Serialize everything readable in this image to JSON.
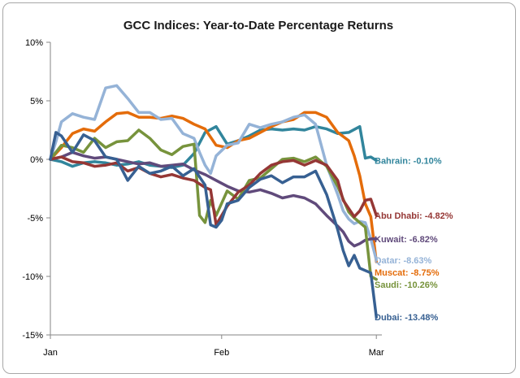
{
  "chart_data": {
    "type": "line",
    "title": "GCC Indices: Year-to-Date Percentage Returns",
    "xlabel": "",
    "ylabel": "",
    "ylim": [
      -15,
      10
    ],
    "yticks": [
      10,
      5,
      0,
      -5,
      -10,
      -15
    ],
    "ytick_labels": [
      "10%",
      "5%",
      "0%",
      "-5%",
      "-10%",
      "-15%"
    ],
    "xlim": [
      0,
      60
    ],
    "xticks": [
      0,
      31,
      59
    ],
    "xtick_labels": [
      "Jan",
      "Feb",
      "Mar"
    ],
    "grid": false,
    "legend": "none",
    "series": [
      {
        "name": "Bahrain",
        "end_label": "Bahrain: -0.10%",
        "color": "#31859c",
        "x": [
          0,
          2,
          4,
          6,
          8,
          10,
          12,
          14,
          16,
          18,
          20,
          22,
          24,
          26,
          28,
          30,
          32,
          34,
          36,
          38,
          40,
          42,
          44,
          46,
          48,
          50,
          52,
          54,
          56,
          57,
          58,
          59
        ],
        "values": [
          0,
          -0.2,
          -0.6,
          -0.3,
          -0.2,
          -0.3,
          -0.5,
          -0.4,
          -0.2,
          -0.5,
          -0.6,
          -0.7,
          -0.5,
          0.5,
          2.3,
          2.8,
          1.3,
          1.6,
          2.0,
          2.5,
          2.6,
          2.5,
          2.6,
          2.5,
          2.8,
          2.6,
          2.2,
          2.3,
          2.8,
          0.1,
          0.2,
          -0.1
        ]
      },
      {
        "name": "Abu Dhabi",
        "end_label": "Abu Dhabi: -4.82%",
        "color": "#953735",
        "x": [
          0,
          2,
          4,
          6,
          8,
          10,
          12,
          14,
          16,
          18,
          20,
          22,
          24,
          26,
          28,
          29,
          30,
          32,
          34,
          36,
          38,
          40,
          42,
          44,
          46,
          48,
          50,
          52,
          53,
          54,
          55,
          56,
          57,
          58,
          59
        ],
        "values": [
          0,
          0.2,
          -0.2,
          -0.3,
          -0.6,
          -0.5,
          -0.3,
          -1.0,
          -0.7,
          -1.2,
          -1.5,
          -1.3,
          -1.6,
          -1.8,
          -2.4,
          -2.6,
          -5.6,
          -4.0,
          -2.8,
          -2.2,
          -1.2,
          -0.5,
          -0.2,
          -0.1,
          -0.5,
          -0.1,
          -0.5,
          -1.8,
          -3.5,
          -4.2,
          -4.9,
          -4.4,
          -3.5,
          -3.4,
          -4.8
        ]
      },
      {
        "name": "Kuwait",
        "end_label": "Kuwait: -6.82%",
        "color": "#604a7b",
        "x": [
          0,
          2,
          4,
          6,
          8,
          10,
          12,
          14,
          16,
          18,
          20,
          22,
          24,
          26,
          28,
          30,
          32,
          34,
          36,
          38,
          40,
          42,
          44,
          46,
          48,
          50,
          52,
          53,
          54,
          55,
          56,
          57,
          58,
          59
        ],
        "values": [
          0,
          0.2,
          0.6,
          0.3,
          0.1,
          0.2,
          0.0,
          -0.2,
          -0.4,
          -0.3,
          -0.6,
          -0.5,
          -0.4,
          -0.9,
          -1.3,
          -1.8,
          -2.3,
          -2.7,
          -2.8,
          -2.6,
          -2.9,
          -3.3,
          -3.1,
          -3.3,
          -3.8,
          -4.8,
          -5.7,
          -6.2,
          -7.0,
          -7.4,
          -7.2,
          -6.9,
          -6.8,
          -6.8
        ]
      },
      {
        "name": "Qatar",
        "end_label": "Qatar: -8.63%",
        "color": "#95b3d7",
        "x": [
          0,
          1,
          2,
          4,
          6,
          8,
          10,
          12,
          14,
          16,
          18,
          20,
          22,
          24,
          26,
          27,
          28,
          29,
          30,
          32,
          34,
          36,
          38,
          40,
          42,
          44,
          46,
          48,
          50,
          52,
          53,
          54,
          55,
          56,
          57,
          58,
          59
        ],
        "values": [
          0,
          1.5,
          3.2,
          3.9,
          3.6,
          3.4,
          6.1,
          6.3,
          5.2,
          4.0,
          4.0,
          3.4,
          3.5,
          2.2,
          1.8,
          0.6,
          -0.5,
          -1.2,
          0.3,
          1.2,
          1.4,
          3.0,
          2.7,
          3.0,
          3.2,
          3.6,
          3.8,
          3.0,
          -0.5,
          -3.0,
          -4.4,
          -5.1,
          -5.5,
          -5.3,
          -5.4,
          -6.8,
          -8.6
        ]
      },
      {
        "name": "Muscat",
        "end_label": "Muscat: -8.75%",
        "color": "#e46c0a",
        "x": [
          0,
          2,
          4,
          6,
          8,
          10,
          12,
          14,
          16,
          18,
          20,
          22,
          24,
          26,
          28,
          30,
          32,
          34,
          36,
          38,
          40,
          42,
          44,
          46,
          48,
          50,
          52,
          54,
          55,
          56,
          57,
          58,
          59
        ],
        "values": [
          0,
          1.0,
          2.2,
          2.6,
          2.4,
          3.2,
          3.9,
          4.0,
          3.6,
          3.6,
          3.5,
          3.7,
          3.5,
          3.0,
          2.6,
          1.2,
          1.0,
          1.6,
          1.8,
          2.3,
          2.8,
          3.2,
          3.4,
          4.0,
          4.0,
          3.6,
          2.3,
          1.6,
          0.3,
          -1.4,
          -3.8,
          -4.9,
          -8.75
        ]
      },
      {
        "name": "Saudi",
        "end_label": "Saudi: -10.26%",
        "color": "#77933c",
        "x": [
          0,
          2,
          4,
          6,
          8,
          10,
          12,
          14,
          16,
          18,
          20,
          22,
          24,
          26,
          27,
          28,
          29,
          30,
          32,
          34,
          36,
          38,
          40,
          42,
          44,
          46,
          48,
          50,
          52,
          54,
          55,
          56,
          57,
          58,
          59
        ],
        "values": [
          0,
          1.2,
          1.0,
          0.6,
          1.8,
          1.0,
          1.5,
          1.6,
          2.5,
          1.8,
          0.8,
          0.4,
          1.1,
          1.3,
          -4.8,
          -5.4,
          -3.5,
          -4.8,
          -2.7,
          -3.4,
          -1.8,
          -1.6,
          -0.8,
          0.0,
          0.1,
          -0.2,
          0.2,
          -0.6,
          -2.3,
          -4.5,
          -5.0,
          -5.4,
          -5.8,
          -10.0,
          -10.26
        ]
      },
      {
        "name": "Dubai",
        "end_label": "Dubai: -13.48%",
        "color": "#376092",
        "x": [
          0,
          1,
          2,
          4,
          6,
          8,
          10,
          12,
          14,
          16,
          18,
          20,
          22,
          24,
          26,
          28,
          29,
          30,
          31,
          32,
          34,
          36,
          38,
          40,
          42,
          44,
          46,
          48,
          50,
          52,
          53,
          54,
          55,
          56,
          57,
          58,
          59
        ],
        "values": [
          0,
          2.3,
          2.0,
          0.6,
          2.1,
          1.6,
          0.2,
          0.0,
          -1.8,
          -0.6,
          -1.2,
          -1.0,
          -0.6,
          -1.4,
          -0.8,
          -2.2,
          -5.6,
          -5.8,
          -5.2,
          -3.8,
          -3.5,
          -2.4,
          -1.7,
          -1.4,
          -2.0,
          -1.5,
          -1.5,
          -1.0,
          -3.0,
          -6.0,
          -7.8,
          -9.1,
          -8.2,
          -9.3,
          -9.5,
          -9.7,
          -13.48
        ]
      }
    ]
  }
}
